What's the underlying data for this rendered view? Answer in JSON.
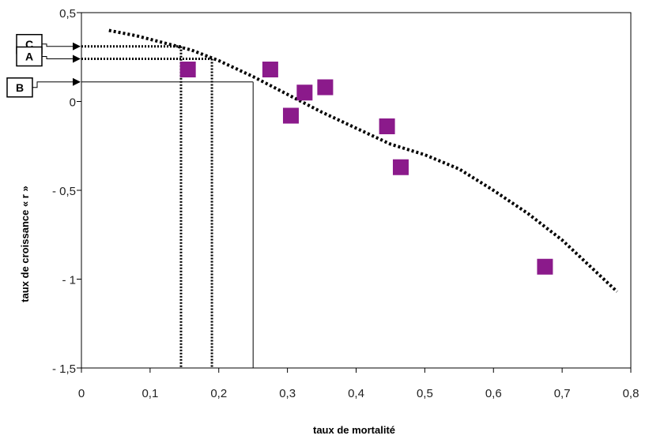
{
  "chart_data": {
    "type": "scatter",
    "title": "",
    "xlabel": "taux de mortalité",
    "ylabel": "taux de croissance « r »",
    "xlim": [
      0,
      0.8
    ],
    "ylim": [
      -1.5,
      0.5
    ],
    "x_ticks": [
      0,
      0.1,
      0.2,
      0.3,
      0.4,
      0.5,
      0.6,
      0.7,
      0.8
    ],
    "x_tick_labels": [
      "0",
      "0,1",
      "0,2",
      "0,3",
      "0,4",
      "0,5",
      "0,6",
      "0,7",
      "0,8"
    ],
    "y_ticks": [
      0.5,
      0,
      -0.5,
      -1,
      -1.5
    ],
    "y_tick_labels": [
      "0,5",
      "0",
      "- 0,5",
      "- 1",
      "- 1,5"
    ],
    "grid": false,
    "series": [
      {
        "marker": "square",
        "color": "#8B1A8B",
        "points": [
          {
            "x": 0.155,
            "y": 0.18
          },
          {
            "x": 0.275,
            "y": 0.18
          },
          {
            "x": 0.325,
            "y": 0.05
          },
          {
            "x": 0.355,
            "y": 0.08
          },
          {
            "x": 0.305,
            "y": -0.08
          },
          {
            "x": 0.445,
            "y": -0.14
          },
          {
            "x": 0.465,
            "y": -0.37
          },
          {
            "x": 0.675,
            "y": -0.93
          }
        ]
      },
      {
        "style": "dotted-line",
        "color": "#000000",
        "points": [
          {
            "x": 0.04,
            "y": 0.4
          },
          {
            "x": 0.08,
            "y": 0.37
          },
          {
            "x": 0.12,
            "y": 0.33
          },
          {
            "x": 0.16,
            "y": 0.29
          },
          {
            "x": 0.2,
            "y": 0.23
          },
          {
            "x": 0.25,
            "y": 0.14
          },
          {
            "x": 0.3,
            "y": 0.04
          },
          {
            "x": 0.35,
            "y": -0.06
          },
          {
            "x": 0.4,
            "y": -0.15
          },
          {
            "x": 0.45,
            "y": -0.24
          },
          {
            "x": 0.5,
            "y": -0.3
          },
          {
            "x": 0.55,
            "y": -0.38
          },
          {
            "x": 0.6,
            "y": -0.5
          },
          {
            "x": 0.65,
            "y": -0.63
          },
          {
            "x": 0.7,
            "y": -0.78
          },
          {
            "x": 0.78,
            "y": -1.07
          }
        ]
      }
    ],
    "annotations": [
      {
        "label": "C",
        "y": 0.31,
        "x_drop": 0.145,
        "drop_style": "dotted"
      },
      {
        "label": "A",
        "y": 0.24,
        "x_drop": 0.19,
        "drop_style": "dotted"
      },
      {
        "label": "B",
        "y": 0.11,
        "x_drop": 0.25,
        "drop_style": "solid"
      }
    ]
  }
}
